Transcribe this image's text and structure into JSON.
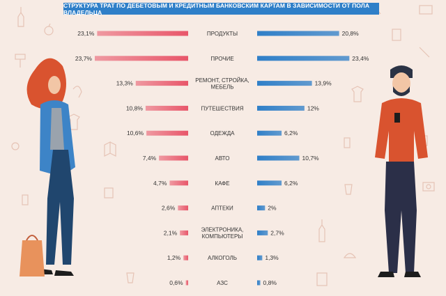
{
  "title": "СТРУКТУРА ТРАТ ПО ДЕБЕТОВЫМ И КРЕДИТНЫМ БАНКОВСКИМ КАРТАМ В ЗАВИСИМОСТИ ОТ ПОЛА ВЛАДЕЛЬЦА",
  "colors": {
    "female": "#e8566a",
    "male": "#2f7fc8",
    "banner": "#2f7fc8",
    "background": "#f7ebe4"
  },
  "chart_data": {
    "type": "bar",
    "orientation": "horizontal-butterfly",
    "title": "СТРУКТУРА ТРАТ ПО ДЕБЕТОВЫМ И КРЕДИТНЫМ БАНКОВСКИМ КАРТАМ В ЗАВИСИМОСТИ ОТ ПОЛА ВЛАДЕЛЬЦА",
    "categories": [
      [
        "ПРОДУКТЫ"
      ],
      [
        "ПРОЧИЕ"
      ],
      [
        "РЕМОНТ, СТРОЙКА,",
        "МЕБЕЛЬ"
      ],
      [
        "ПУТЕШЕСТВИЯ"
      ],
      [
        "ОДЕЖДА"
      ],
      [
        "АВТО"
      ],
      [
        "КАФЕ"
      ],
      [
        "АПТЕКИ"
      ],
      [
        "ЭЛЕКТРОНИКА,",
        "КОМПЬЮТЕРЫ"
      ],
      [
        "АЛКОГОЛЬ"
      ],
      [
        "АЗС"
      ]
    ],
    "series": [
      {
        "side": "left",
        "values": [
          23.1,
          23.7,
          13.3,
          10.8,
          10.6,
          7.4,
          4.7,
          2.6,
          2.1,
          1.2,
          0.6
        ],
        "labels": [
          "23,1%",
          "23,7%",
          "13,3%",
          "10,8%",
          "10,6%",
          "7,4%",
          "4,7%",
          "2,6%",
          "2,1%",
          "1,2%",
          "0,6%"
        ]
      },
      {
        "side": "right",
        "values": [
          20.8,
          23.4,
          13.9,
          12,
          6.2,
          10.7,
          6.2,
          2,
          2.7,
          1.3,
          0.8
        ],
        "labels": [
          "20,8%",
          "23,4%",
          "13,9%",
          "12%",
          "6,2%",
          "10,7%",
          "6,2%",
          "2%",
          "2,7%",
          "1,3%",
          "0,8%"
        ]
      }
    ]
  }
}
